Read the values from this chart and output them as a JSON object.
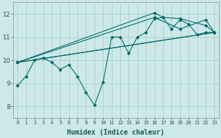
{
  "xlabel": "Humidex (Indice chaleur)",
  "bg_color": "#cce8e8",
  "line_color": "#006868",
  "grid_color": "#aacccc",
  "xlim": [
    -0.5,
    23.5
  ],
  "ylim": [
    7.5,
    12.5
  ],
  "xticks": [
    0,
    1,
    2,
    3,
    4,
    5,
    6,
    7,
    8,
    9,
    10,
    11,
    12,
    13,
    14,
    15,
    16,
    17,
    18,
    19,
    20,
    21,
    22,
    23
  ],
  "yticks": [
    8,
    9,
    10,
    11,
    12
  ],
  "line1_x": [
    0,
    1,
    2,
    3,
    4,
    5,
    6,
    7,
    8,
    9,
    10,
    11,
    12,
    13,
    14,
    15,
    16,
    17,
    18,
    19,
    20,
    21,
    22,
    23
  ],
  "line1_y": [
    8.9,
    9.3,
    10.0,
    10.1,
    9.9,
    9.6,
    9.8,
    9.3,
    8.6,
    8.05,
    9.05,
    11.0,
    11.0,
    10.3,
    11.0,
    11.2,
    11.8,
    11.85,
    11.35,
    11.75,
    11.55,
    11.1,
    11.2,
    11.2
  ],
  "trend_lines_x": [
    [
      0,
      23
    ],
    [
      0,
      23
    ],
    [
      0,
      16,
      19,
      22,
      23
    ],
    [
      0,
      16,
      17,
      19,
      22,
      23
    ]
  ],
  "trend_lines_y": [
    [
      9.9,
      11.2
    ],
    [
      9.9,
      11.2
    ],
    [
      9.9,
      11.85,
      11.35,
      11.75,
      11.2
    ],
    [
      9.9,
      12.05,
      11.85,
      11.8,
      11.5,
      11.2
    ]
  ]
}
